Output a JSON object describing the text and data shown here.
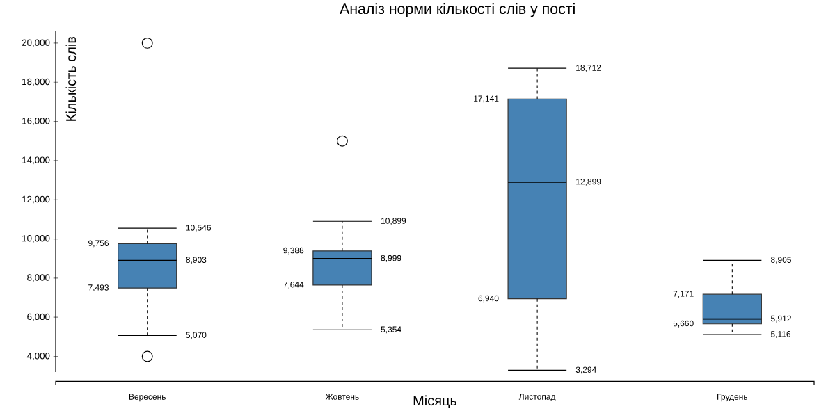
{
  "chart_data": {
    "type": "box",
    "title": "Аналіз норми кількості слів у пості",
    "xlabel": "Місяць",
    "ylabel": "Кількість слів",
    "categories": [
      "Вересень",
      "Жовтень",
      "Листопад",
      "Грудень"
    ],
    "color": "#4682b4",
    "marker": "circle",
    "boxes": [
      {
        "low": 5070,
        "q1": 7493,
        "median": 8903,
        "q3": 9756,
        "high": 10546,
        "outliers": [
          20000,
          4000
        ]
      },
      {
        "low": 5354,
        "q1": 7644,
        "median": 8999,
        "q3": 9388,
        "high": 10899,
        "outliers": [
          15000
        ]
      },
      {
        "low": 3294,
        "q1": 6940,
        "median": 12899,
        "q3": 17141,
        "high": 18712
      },
      {
        "low": 5116,
        "q1": 5660,
        "median": 5912,
        "q3": 7171,
        "high": 8905
      }
    ],
    "annotations": [
      "10,546",
      "8,903",
      "5,070",
      "9,756",
      "7,493",
      "10,899",
      "8,999",
      "5,354",
      "9,388",
      "7,644",
      "18,712",
      "12,899",
      "3,294",
      "17,141",
      "6,940",
      "8,905",
      "5,912",
      "5,116",
      "7,171",
      "5,660"
    ],
    "ylim": [
      3200,
      20600
    ],
    "yticks": [
      {
        "value": 4000,
        "label": "4,000"
      },
      {
        "value": 6000,
        "label": "6,000"
      },
      {
        "value": 8000,
        "label": "8,000"
      },
      {
        "value": 10000,
        "label": "10,000"
      },
      {
        "value": 12000,
        "label": "12,000"
      },
      {
        "value": 14000,
        "label": "14,000"
      },
      {
        "value": 16000,
        "label": "16,000"
      },
      {
        "value": 18000,
        "label": "18,000"
      },
      {
        "value": 20000,
        "label": "20,000"
      }
    ]
  }
}
